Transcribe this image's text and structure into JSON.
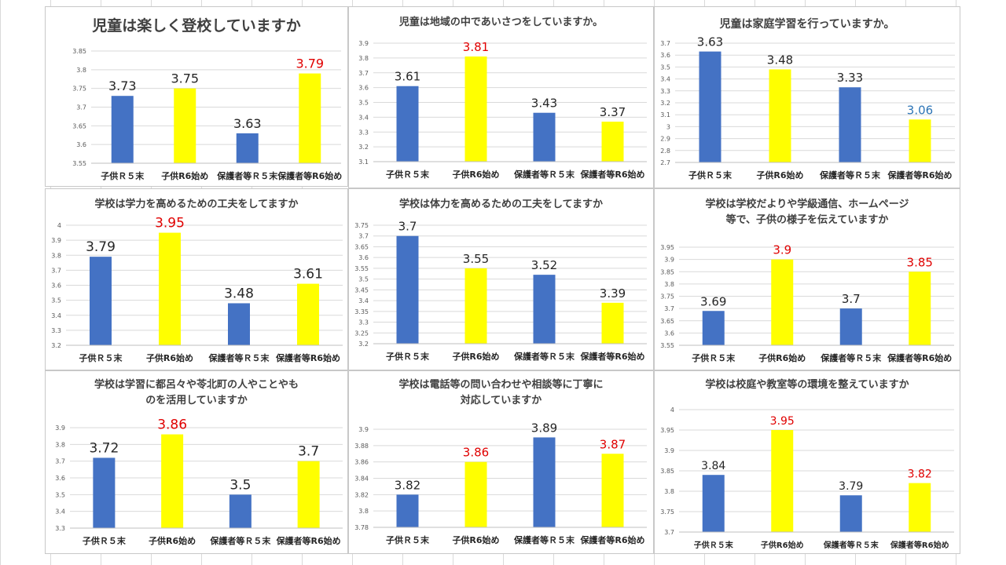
{
  "colors": {
    "blue": "#4472c4",
    "yellow": "#ffff00",
    "label_dark": "#262626",
    "label_red": "#e00000",
    "label_blue": "#2e75b6",
    "gridline": "#d9d9d9",
    "tick_text": "#595959",
    "category_text": "#262626"
  },
  "chart_data": [
    {
      "type": "bar",
      "title_lines": [
        "児童は楽しく登校していますか"
      ],
      "categories": [
        "子供Ｒ５末",
        "子供R6始め",
        "保護者等Ｒ５末",
        "保護者等R6始め"
      ],
      "values": [
        3.73,
        3.75,
        3.63,
        3.79
      ],
      "value_labels": [
        "3.73",
        "3.75",
        "3.63",
        "3.79"
      ],
      "bar_colors": [
        "blue",
        "yellow",
        "blue",
        "yellow"
      ],
      "label_colors": [
        "label_dark",
        "label_dark",
        "label_dark",
        "label_red"
      ],
      "ylim": [
        3.55,
        3.85
      ],
      "yticks": [
        "3.55",
        "3.6",
        "3.65",
        "3.7",
        "3.75",
        "3.8",
        "3.85"
      ],
      "grid": true
    },
    {
      "type": "bar",
      "title_lines": [
        "児童は地域の中であいさつをしていますか。"
      ],
      "categories": [
        "子供Ｒ５末",
        "子供R6始め",
        "保護者等Ｒ５末",
        "保護者等R6始め"
      ],
      "values": [
        3.61,
        3.81,
        3.43,
        3.37
      ],
      "value_labels": [
        "3.61",
        "3.81",
        "3.43",
        "3.37"
      ],
      "bar_colors": [
        "blue",
        "yellow",
        "blue",
        "yellow"
      ],
      "label_colors": [
        "label_dark",
        "label_red",
        "label_dark",
        "label_dark"
      ],
      "ylim": [
        3.1,
        3.9
      ],
      "yticks": [
        "3.1",
        "3.2",
        "3.3",
        "3.4",
        "3.5",
        "3.6",
        "3.7",
        "3.8",
        "3.9"
      ],
      "grid": true
    },
    {
      "type": "bar",
      "title_lines": [
        "児童は家庭学習を行っていますか。"
      ],
      "categories": [
        "子供Ｒ５末",
        "子供R6始め",
        "保護者等Ｒ５末",
        "保護者等R6始め"
      ],
      "values": [
        3.63,
        3.48,
        3.33,
        3.06
      ],
      "value_labels": [
        "3.63",
        "3.48",
        "3.33",
        "3.06"
      ],
      "bar_colors": [
        "blue",
        "yellow",
        "blue",
        "yellow"
      ],
      "label_colors": [
        "label_dark",
        "label_dark",
        "label_dark",
        "label_blue"
      ],
      "ylim": [
        2.7,
        3.7
      ],
      "yticks": [
        "2.7",
        "2.8",
        "2.9",
        "3",
        "3.1",
        "3.2",
        "3.3",
        "3.4",
        "3.5",
        "3.6",
        "3.7"
      ],
      "grid": true
    },
    {
      "type": "bar",
      "title_lines": [
        "学校は学力を高めるための工夫をしてますか"
      ],
      "categories": [
        "子供Ｒ５末",
        "子供R6始め",
        "保護者等Ｒ５末",
        "保護者等R6始め"
      ],
      "values": [
        3.79,
        3.95,
        3.48,
        3.61
      ],
      "value_labels": [
        "3.79",
        "3.95",
        "3.48",
        "3.61"
      ],
      "bar_colors": [
        "blue",
        "yellow",
        "blue",
        "yellow"
      ],
      "label_colors": [
        "label_dark",
        "label_red",
        "label_dark",
        "label_dark"
      ],
      "ylim": [
        3.2,
        4.0
      ],
      "yticks": [
        "3.2",
        "3.3",
        "3.4",
        "3.5",
        "3.6",
        "3.7",
        "3.8",
        "3.9",
        "4"
      ],
      "grid": true
    },
    {
      "type": "bar",
      "title_lines": [
        "学校は体力を高めるための工夫をしてますか"
      ],
      "categories": [
        "子供Ｒ５末",
        "子供R6始め",
        "保護者等Ｒ５末",
        "保護者等R6始め"
      ],
      "values": [
        3.7,
        3.55,
        3.52,
        3.39
      ],
      "value_labels": [
        "3.7",
        "3.55",
        "3.52",
        "3.39"
      ],
      "bar_colors": [
        "blue",
        "yellow",
        "blue",
        "yellow"
      ],
      "label_colors": [
        "label_dark",
        "label_dark",
        "label_dark",
        "label_dark"
      ],
      "ylim": [
        3.2,
        3.75
      ],
      "yticks": [
        "3.2",
        "3.25",
        "3.3",
        "3.35",
        "3.4",
        "3.45",
        "3.5",
        "3.55",
        "3.6",
        "3.65",
        "3.7",
        "3.75"
      ],
      "grid": true
    },
    {
      "type": "bar",
      "title_lines": [
        "学校は学校だよりや学級通信、ホームページ",
        "等で、子供の様子を伝えていますか"
      ],
      "categories": [
        "子供Ｒ５末",
        "子供R6始め",
        "保護者等Ｒ５末",
        "保護者等R6始め"
      ],
      "values": [
        3.69,
        3.9,
        3.7,
        3.85
      ],
      "value_labels": [
        "3.69",
        "3.9",
        "3.7",
        "3.85"
      ],
      "bar_colors": [
        "blue",
        "yellow",
        "blue",
        "yellow"
      ],
      "label_colors": [
        "label_dark",
        "label_red",
        "label_dark",
        "label_red"
      ],
      "ylim": [
        3.55,
        3.95
      ],
      "yticks": [
        "3.55",
        "3.6",
        "3.65",
        "3.7",
        "3.75",
        "3.8",
        "3.85",
        "3.9",
        "3.95"
      ],
      "grid": true
    },
    {
      "type": "bar",
      "title_lines": [
        "学校は学習に都呂々や苓北町の人やことやも",
        "のを活用していますか"
      ],
      "categories": [
        "子供Ｒ５末",
        "子供R6始め",
        "保護者等Ｒ５末",
        "保護者等R6始め"
      ],
      "values": [
        3.72,
        3.86,
        3.5,
        3.7
      ],
      "value_labels": [
        "3.72",
        "3.86",
        "3.5",
        "3.7"
      ],
      "bar_colors": [
        "blue",
        "yellow",
        "blue",
        "yellow"
      ],
      "label_colors": [
        "label_dark",
        "label_red",
        "label_dark",
        "label_dark"
      ],
      "ylim": [
        3.3,
        3.9
      ],
      "yticks": [
        "3.3",
        "3.4",
        "3.5",
        "3.6",
        "3.7",
        "3.8",
        "3.9"
      ],
      "grid": true
    },
    {
      "type": "bar",
      "title_lines": [
        "学校は電話等の問い合わせや相談等に丁寧に",
        "対応していますか"
      ],
      "categories": [
        "子供Ｒ５末",
        "子供R6始め",
        "保護者等Ｒ５末",
        "保護者等R6始め"
      ],
      "values": [
        3.82,
        3.86,
        3.89,
        3.87
      ],
      "value_labels": [
        "3.82",
        "3.86",
        "3.89",
        "3.87"
      ],
      "bar_colors": [
        "blue",
        "yellow",
        "blue",
        "yellow"
      ],
      "label_colors": [
        "label_dark",
        "label_red",
        "label_dark",
        "label_red"
      ],
      "ylim": [
        3.78,
        3.9
      ],
      "yticks": [
        "3.78",
        "3.8",
        "3.82",
        "3.84",
        "3.86",
        "3.88",
        "3.9"
      ],
      "grid": true
    },
    {
      "type": "bar",
      "title_lines": [
        "学校は校庭や教室等の環境を整えていますか"
      ],
      "categories": [
        "子供Ｒ５末",
        "子供R6始め",
        "保護者等Ｒ５末",
        "保護者等R6始め"
      ],
      "values": [
        3.84,
        3.95,
        3.79,
        3.82
      ],
      "value_labels": [
        "3.84",
        "3.95",
        "3.79",
        "3.82"
      ],
      "bar_colors": [
        "blue",
        "yellow",
        "blue",
        "yellow"
      ],
      "label_colors": [
        "label_dark",
        "label_red",
        "label_dark",
        "label_red"
      ],
      "ylim": [
        3.7,
        4.0
      ],
      "yticks": [
        "3.7",
        "3.75",
        "3.8",
        "3.85",
        "3.9",
        "3.95",
        "4"
      ],
      "grid": true
    }
  ]
}
